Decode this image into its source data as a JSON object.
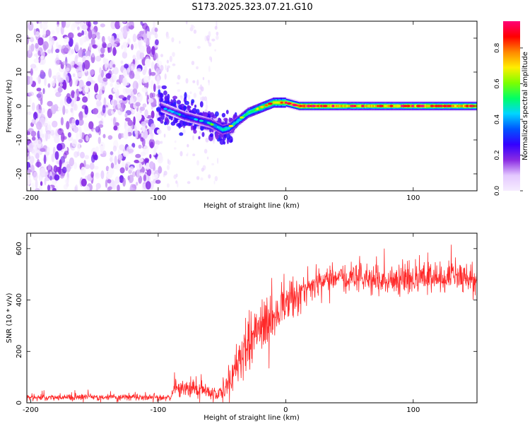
{
  "title": "S173.2025.323.07.21.G10",
  "colors": {
    "snr_line": "#ff2a2a",
    "axis": "#000000",
    "background": "#ffffff"
  },
  "chart_data": [
    {
      "type": "heatmap",
      "name": "spectrogram",
      "xlabel": "Height of straight line (km)",
      "ylabel": "Frequency (Hz)",
      "xlim": [
        -203,
        150
      ],
      "ylim": [
        -25,
        25
      ],
      "xticks": [
        -200,
        -100,
        0,
        100
      ],
      "yticks": [
        -20,
        -10,
        0,
        10,
        20
      ],
      "colorbar": {
        "label": "Normalized spectral amplitude",
        "range": [
          0,
          0.95
        ],
        "ticks": [
          0.0,
          0.2,
          0.4,
          0.6,
          0.8
        ],
        "tick_labels": [
          "0.0",
          "0.2",
          "0.4",
          "0.6",
          "0.8"
        ],
        "colormap": [
          "#ffffff",
          "#e4c8ff",
          "#8a2be2",
          "#3300ff",
          "#0055ff",
          "#00d5ff",
          "#00ff66",
          "#7dff00",
          "#ffee00",
          "#ff8800",
          "#ff0000",
          "#ff0077"
        ]
      },
      "noise_region_x": [
        -203,
        -98
      ],
      "signal_track": {
        "x": [
          -100,
          -90,
          -80,
          -70,
          -60,
          -50,
          -45,
          -40,
          -30,
          -20,
          -10,
          0,
          10,
          50,
          100,
          150
        ],
        "freq": [
          0,
          -1.5,
          -3,
          -4,
          -5,
          -7,
          -6.5,
          -5,
          -2,
          -0.5,
          1,
          1,
          0,
          0,
          0,
          0
        ],
        "amplitude": [
          0.25,
          0.25,
          0.3,
          0.3,
          0.35,
          0.45,
          0.45,
          0.45,
          0.5,
          0.6,
          0.65,
          0.7,
          0.85,
          0.7,
          0.75,
          0.75
        ]
      }
    },
    {
      "type": "line",
      "name": "snr",
      "xlabel": "Height of straight line (km)",
      "ylabel": "SNR (10 * v/v)",
      "xlim": [
        -203,
        150
      ],
      "ylim": [
        0,
        660
      ],
      "xticks": [
        -200,
        -100,
        0,
        100
      ],
      "yticks": [
        0,
        200,
        400,
        600
      ],
      "series": [
        {
          "name": "SNR",
          "x": [
            -203,
            -120,
            -90,
            -87,
            -85,
            -75,
            -65,
            -58,
            -52,
            -45,
            -40,
            -35,
            -30,
            -20,
            -10,
            0,
            10,
            20,
            30,
            40,
            60,
            80,
            100,
            120,
            150
          ],
          "mean": [
            20,
            22,
            20,
            60,
            50,
            55,
            50,
            30,
            40,
            70,
            130,
            180,
            230,
            290,
            350,
            380,
            420,
            450,
            490,
            490,
            485,
            470,
            480,
            490,
            490
          ],
          "spread": [
            14,
            14,
            14,
            40,
            30,
            30,
            35,
            25,
            30,
            60,
            90,
            100,
            110,
            110,
            110,
            100,
            80,
            70,
            60,
            60,
            60,
            65,
            65,
            70,
            70
          ]
        }
      ]
    }
  ]
}
